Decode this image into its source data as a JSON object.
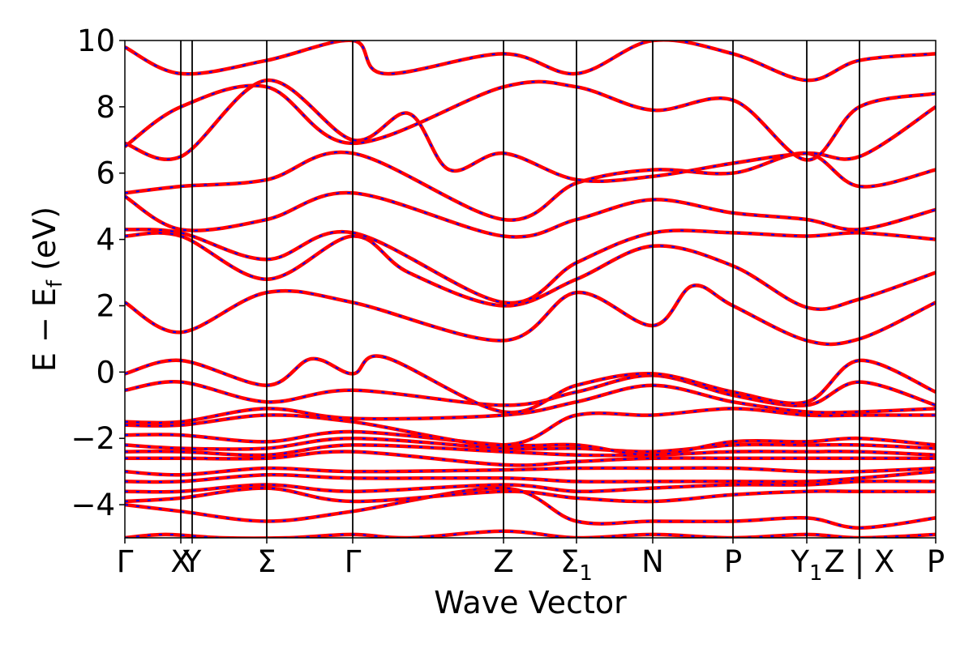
{
  "chart_data": {
    "type": "line",
    "xlabel": "Wave Vector",
    "ylabel": "E − E",
    "ylabel_sub": "f",
    "ylabel_unit": " (eV)",
    "ylim": [
      -5,
      10
    ],
    "yticks": [
      -4,
      -2,
      0,
      2,
      4,
      6,
      8,
      10
    ],
    "ytick_labels": [
      "−4",
      "−2",
      "0",
      "2",
      "4",
      "6",
      "8",
      "10"
    ],
    "x_range": [
      0,
      100
    ],
    "grid": false,
    "legend": "none",
    "line_style": "red solid with blue dashed overlay",
    "colors": {
      "primary": "#ff0000",
      "secondary": "#0000ff",
      "axis": "#000000"
    },
    "kpoints": [
      {
        "pos": 0,
        "label": "Γ"
      },
      {
        "pos": 6.9,
        "label": "X"
      },
      {
        "pos": 8.3,
        "label": "Y"
      },
      {
        "pos": 17.5,
        "label": "Σ"
      },
      {
        "pos": 28.1,
        "label": "Γ"
      },
      {
        "pos": 46.7,
        "label": "Z"
      },
      {
        "pos": 55.7,
        "label": "Σ",
        "sub": "1"
      },
      {
        "pos": 65.1,
        "label": "N"
      },
      {
        "pos": 75.0,
        "label": "P"
      },
      {
        "pos": 84.1,
        "label": "Y",
        "sub": "1"
      },
      {
        "pos": 90.6,
        "label": "Z | X"
      },
      {
        "pos": 100,
        "label": "P"
      }
    ],
    "series": [
      {
        "values": [
          [
            0,
            -5
          ],
          [
            5,
            -4.9
          ],
          [
            12,
            -5
          ],
          [
            20,
            -5
          ],
          [
            28.1,
            -4.9
          ],
          [
            35,
            -5
          ],
          [
            46.7,
            -4.8
          ],
          [
            55.7,
            -5
          ],
          [
            65.1,
            -4.9
          ],
          [
            75,
            -5
          ],
          [
            84.1,
            -4.9
          ],
          [
            90.6,
            -5
          ],
          [
            100,
            -4.9
          ]
        ]
      },
      {
        "values": [
          [
            0,
            -4
          ],
          [
            6.9,
            -4.2
          ],
          [
            17.5,
            -4.5
          ],
          [
            28.1,
            -4.2
          ],
          [
            46.7,
            -3.5
          ],
          [
            55.7,
            -4.5
          ],
          [
            65.1,
            -4.5
          ],
          [
            75,
            -4.5
          ],
          [
            84.1,
            -4.4
          ],
          [
            90.6,
            -4.7
          ],
          [
            100,
            -4.4
          ]
        ]
      },
      {
        "values": [
          [
            0,
            -3.9
          ],
          [
            6.9,
            -3.8
          ],
          [
            17.5,
            -3.5
          ],
          [
            28.1,
            -3.9
          ],
          [
            46.7,
            -3.6
          ],
          [
            55.7,
            -3.8
          ],
          [
            65.1,
            -3.9
          ],
          [
            75,
            -3.7
          ],
          [
            84.1,
            -3.6
          ],
          [
            90.6,
            -3.6
          ],
          [
            100,
            -3.6
          ]
        ]
      },
      {
        "values": [
          [
            0,
            -3.6
          ],
          [
            6.9,
            -3.6
          ],
          [
            17.5,
            -3.4
          ],
          [
            28.1,
            -3.6
          ],
          [
            46.7,
            -3.4
          ],
          [
            55.7,
            -3.6
          ],
          [
            65.1,
            -3.5
          ],
          [
            75,
            -3.4
          ],
          [
            84.1,
            -3.4
          ],
          [
            90.6,
            -3.3
          ],
          [
            100,
            -3.3
          ]
        ]
      },
      {
        "values": [
          [
            0,
            -3.3
          ],
          [
            6.9,
            -3.3
          ],
          [
            17.5,
            -3.1
          ],
          [
            28.1,
            -3.2
          ],
          [
            46.7,
            -3.2
          ],
          [
            55.7,
            -3.3
          ],
          [
            65.1,
            -3.3
          ],
          [
            75,
            -3.3
          ],
          [
            84.1,
            -3.3
          ],
          [
            90.6,
            -3.2
          ],
          [
            100,
            -3.0
          ]
        ]
      },
      {
        "values": [
          [
            0,
            -3.0
          ],
          [
            6.9,
            -3.1
          ],
          [
            17.5,
            -2.9
          ],
          [
            28.1,
            -3.0
          ],
          [
            46.7,
            -2.95
          ],
          [
            55.7,
            -2.9
          ],
          [
            65.1,
            -2.9
          ],
          [
            75,
            -2.9
          ],
          [
            84.1,
            -3.0
          ],
          [
            90.6,
            -3.0
          ],
          [
            100,
            -2.9
          ]
        ]
      },
      {
        "values": [
          [
            0,
            -2.6
          ],
          [
            6.9,
            -2.6
          ],
          [
            17.5,
            -2.6
          ],
          [
            28.1,
            -2.4
          ],
          [
            46.7,
            -2.8
          ],
          [
            55.7,
            -2.7
          ],
          [
            65.1,
            -2.6
          ],
          [
            75,
            -2.6
          ],
          [
            84.1,
            -2.6
          ],
          [
            90.6,
            -2.6
          ],
          [
            100,
            -2.6
          ]
        ]
      },
      {
        "values": [
          [
            0,
            -2.4
          ],
          [
            6.9,
            -2.4
          ],
          [
            17.5,
            -2.5
          ],
          [
            28.1,
            -2.2
          ],
          [
            46.7,
            -2.4
          ],
          [
            55.7,
            -2.5
          ],
          [
            65.1,
            -2.5
          ],
          [
            75,
            -2.4
          ],
          [
            84.1,
            -2.4
          ],
          [
            90.6,
            -2.4
          ],
          [
            100,
            -2.5
          ]
        ]
      },
      {
        "values": [
          [
            0,
            -2.2
          ],
          [
            6.9,
            -2.3
          ],
          [
            17.5,
            -2.3
          ],
          [
            28.1,
            -2.0
          ],
          [
            46.7,
            -2.3
          ],
          [
            55.7,
            -2.3
          ],
          [
            65.1,
            -2.4
          ],
          [
            75,
            -2.2
          ],
          [
            84.1,
            -2.2
          ],
          [
            90.6,
            -2.2
          ],
          [
            100,
            -2.3
          ]
        ]
      },
      {
        "values": [
          [
            0,
            -1.9
          ],
          [
            6.9,
            -1.9
          ],
          [
            17.5,
            -2.1
          ],
          [
            28.1,
            -1.8
          ],
          [
            46.7,
            -2.2
          ],
          [
            55.7,
            -2.2
          ],
          [
            65.1,
            -2.5
          ],
          [
            75,
            -2.1
          ],
          [
            84.1,
            -2.1
          ],
          [
            90.6,
            -2.0
          ],
          [
            100,
            -2.2
          ]
        ]
      },
      {
        "values": [
          [
            0,
            -1.6
          ],
          [
            6.9,
            -1.6
          ],
          [
            17.5,
            -1.3
          ],
          [
            28.1,
            -1.5
          ],
          [
            46.7,
            -2.2
          ],
          [
            55.7,
            -1.3
          ],
          [
            65.1,
            -1.3
          ],
          [
            75,
            -1.1
          ],
          [
            84.1,
            -1.3
          ],
          [
            90.6,
            -1.3
          ],
          [
            100,
            -1.3
          ]
        ]
      },
      {
        "values": [
          [
            0,
            -1.5
          ],
          [
            6.9,
            -1.5
          ],
          [
            17.5,
            -1.1
          ],
          [
            28.1,
            -1.4
          ],
          [
            46.7,
            -1.3
          ],
          [
            55.7,
            -0.9
          ],
          [
            65.1,
            -0.4
          ],
          [
            75,
            -0.9
          ],
          [
            84.1,
            -1.2
          ],
          [
            90.6,
            -1.2
          ],
          [
            100,
            -1.1
          ]
        ]
      },
      {
        "values": [
          [
            0,
            -0.55
          ],
          [
            6.9,
            -0.3
          ],
          [
            17.5,
            -0.9
          ],
          [
            28.1,
            -0.55
          ],
          [
            46.7,
            -1.0
          ],
          [
            55.7,
            -0.6
          ],
          [
            65.1,
            -0.1
          ],
          [
            75,
            -0.7
          ],
          [
            84.1,
            -1.0
          ],
          [
            90.6,
            -0.3
          ],
          [
            100,
            -1.0
          ]
        ]
      },
      {
        "values": [
          [
            0,
            -0.05
          ],
          [
            6.9,
            0.35
          ],
          [
            17.5,
            -0.4
          ],
          [
            23,
            0.4
          ],
          [
            28.1,
            -0.05
          ],
          [
            32,
            0.45
          ],
          [
            46.7,
            -1.2
          ],
          [
            55.7,
            -0.4
          ],
          [
            65.1,
            -0.05
          ],
          [
            75,
            -0.6
          ],
          [
            84.1,
            -0.9
          ],
          [
            90.6,
            0.35
          ],
          [
            100,
            -0.6
          ]
        ]
      },
      {
        "values": [
          [
            0,
            2.1
          ],
          [
            6.9,
            1.2
          ],
          [
            17.5,
            2.4
          ],
          [
            28.1,
            2.1
          ],
          [
            46.7,
            0.95
          ],
          [
            55.7,
            2.4
          ],
          [
            65.1,
            1.4
          ],
          [
            70,
            2.6
          ],
          [
            75,
            2.0
          ],
          [
            84.1,
            0.95
          ],
          [
            90.6,
            1.0
          ],
          [
            100,
            2.1
          ]
        ]
      },
      {
        "values": [
          [
            0,
            4.1
          ],
          [
            6.9,
            4.1
          ],
          [
            17.5,
            2.8
          ],
          [
            28.1,
            4.1
          ],
          [
            35,
            3.0
          ],
          [
            46.7,
            2.0
          ],
          [
            55.7,
            2.8
          ],
          [
            65.1,
            3.8
          ],
          [
            75,
            3.2
          ],
          [
            84.1,
            1.95
          ],
          [
            90.6,
            2.2
          ],
          [
            100,
            3.0
          ]
        ]
      },
      {
        "values": [
          [
            0,
            4.3
          ],
          [
            6.9,
            4.2
          ],
          [
            17.5,
            3.4
          ],
          [
            28.1,
            4.2
          ],
          [
            46.7,
            2.1
          ],
          [
            55.7,
            3.3
          ],
          [
            65.1,
            4.2
          ],
          [
            75,
            4.2
          ],
          [
            84.1,
            4.1
          ],
          [
            90.6,
            4.2
          ],
          [
            100,
            4.0
          ]
        ]
      },
      {
        "values": [
          [
            0,
            5.3
          ],
          [
            6.9,
            4.3
          ],
          [
            17.5,
            4.6
          ],
          [
            28.1,
            5.4
          ],
          [
            46.7,
            4.1
          ],
          [
            55.7,
            4.6
          ],
          [
            65.1,
            5.2
          ],
          [
            75,
            4.8
          ],
          [
            84.1,
            4.6
          ],
          [
            90.6,
            4.3
          ],
          [
            100,
            4.9
          ]
        ]
      },
      {
        "values": [
          [
            0,
            5.4
          ],
          [
            6.9,
            5.6
          ],
          [
            17.5,
            5.8
          ],
          [
            28.1,
            6.6
          ],
          [
            46.7,
            4.6
          ],
          [
            55.7,
            5.7
          ],
          [
            65.1,
            6.1
          ],
          [
            75,
            6.0
          ],
          [
            84.1,
            6.6
          ],
          [
            90.6,
            5.6
          ],
          [
            100,
            6.1
          ]
        ]
      },
      {
        "values": [
          [
            0,
            6.9
          ],
          [
            6.9,
            6.5
          ],
          [
            17.5,
            8.8
          ],
          [
            28.1,
            7.0
          ],
          [
            35,
            7.8
          ],
          [
            40,
            6.1
          ],
          [
            46.7,
            6.6
          ],
          [
            55.7,
            5.8
          ],
          [
            65.1,
            5.9
          ],
          [
            75,
            6.3
          ],
          [
            84.1,
            6.6
          ],
          [
            90.6,
            6.5
          ],
          [
            100,
            8.0
          ]
        ]
      },
      {
        "values": [
          [
            0,
            6.8
          ],
          [
            6.9,
            8.0
          ],
          [
            17.5,
            8.6
          ],
          [
            28.1,
            6.9
          ],
          [
            46.7,
            8.6
          ],
          [
            55.7,
            8.6
          ],
          [
            65.1,
            7.9
          ],
          [
            75,
            8.2
          ],
          [
            84.1,
            6.4
          ],
          [
            90.6,
            8.0
          ],
          [
            100,
            8.4
          ]
        ]
      },
      {
        "values": [
          [
            0,
            9.8
          ],
          [
            6.9,
            9.0
          ],
          [
            17.5,
            9.4
          ],
          [
            28.1,
            10.0
          ],
          [
            32,
            9.0
          ],
          [
            46.7,
            9.6
          ],
          [
            55.7,
            9.0
          ],
          [
            65.1,
            10.0
          ],
          [
            75,
            9.6
          ],
          [
            84.1,
            8.8
          ],
          [
            90.6,
            9.4
          ],
          [
            100,
            9.6
          ]
        ]
      }
    ]
  }
}
